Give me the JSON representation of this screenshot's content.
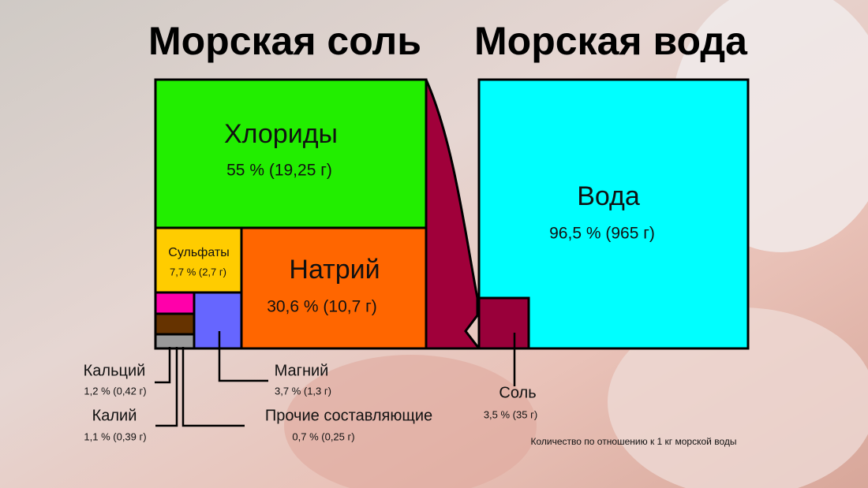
{
  "titles": {
    "left": "Морская соль",
    "right": "Морская вода"
  },
  "salt_parts": {
    "chlorides": {
      "name": "Хлориды",
      "share": "55 % (19,25 г)"
    },
    "sodium": {
      "name": "Натрий",
      "share": "30,6 % (10,7 г)"
    },
    "sulfates": {
      "name": "Сульфаты",
      "share": "7,7 % (2,7 г)"
    },
    "magnesium": {
      "name": "Магний",
      "share": "3,7 % (1,3 г)"
    },
    "calcium": {
      "name": "Кальций",
      "share": "1,2 % (0,42 г)"
    },
    "potassium": {
      "name": "Калий",
      "share": "1,1 % (0,39 г)"
    },
    "other": {
      "name": "Прочие составляющие",
      "share": "0,7 % (0,25 г)"
    }
  },
  "water_parts": {
    "water": {
      "name": "Вода",
      "share": "96,5 % (965 г)"
    },
    "salt": {
      "name": "Соль",
      "share": "3,5 % (35 г)"
    }
  },
  "note": "Количество по отношению к 1 кг морской воды"
}
